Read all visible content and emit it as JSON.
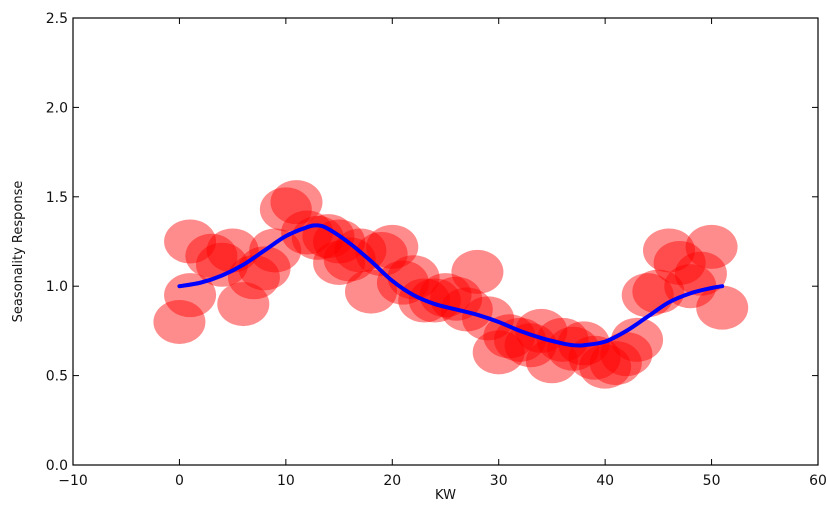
{
  "chart_data": {
    "type": "scatter",
    "title": "",
    "xlabel": "KW",
    "ylabel": "Seasonality Response",
    "xlim": [
      -10,
      60
    ],
    "ylim": [
      0.0,
      2.5
    ],
    "x_ticks": [
      -10,
      0,
      10,
      20,
      30,
      40,
      50,
      60
    ],
    "x_tick_labels": [
      "−10",
      "0",
      "10",
      "20",
      "30",
      "40",
      "50",
      "60"
    ],
    "y_ticks": [
      0.0,
      0.5,
      1.0,
      1.5,
      2.0,
      2.5
    ],
    "y_tick_labels": [
      "0.0",
      "0.5",
      "1.0",
      "1.5",
      "2.0",
      "2.5"
    ],
    "grid": false,
    "legend": "none",
    "series": [
      {
        "type": "scatter",
        "color": "#ff0000",
        "alpha": 0.45,
        "x": [
          0,
          1,
          1,
          3,
          4,
          5,
          6,
          7,
          8,
          9,
          10,
          11,
          12,
          13,
          14,
          15,
          15,
          16,
          17,
          18,
          19,
          20,
          21,
          22,
          23,
          24,
          25,
          26,
          27,
          28,
          29,
          30,
          31,
          32,
          33,
          34,
          35,
          36,
          37,
          38,
          39,
          40,
          41,
          42,
          43,
          44,
          45,
          46,
          47,
          48,
          49,
          50,
          51
        ],
        "y": [
          0.8,
          1.25,
          0.95,
          1.17,
          1.12,
          1.2,
          0.9,
          1.05,
          1.1,
          1.2,
          1.43,
          1.47,
          1.3,
          1.27,
          1.28,
          1.13,
          1.25,
          1.15,
          1.2,
          0.97,
          1.18,
          1.22,
          1.02,
          1.05,
          0.92,
          0.92,
          0.95,
          0.93,
          0.87,
          1.08,
          0.82,
          0.63,
          0.72,
          0.7,
          0.67,
          0.75,
          0.58,
          0.7,
          0.65,
          0.68,
          0.6,
          0.55,
          0.57,
          0.62,
          0.7,
          0.95,
          0.97,
          1.2,
          1.13,
          1.0,
          1.07,
          1.22,
          0.88
        ]
      },
      {
        "type": "line",
        "color": "#0000ff",
        "x": [
          0,
          2,
          4,
          6,
          8,
          10,
          12,
          13,
          14,
          16,
          18,
          20,
          22,
          24,
          26,
          28,
          30,
          32,
          34,
          36,
          37,
          38,
          40,
          42,
          44,
          46,
          48,
          50,
          51
        ],
        "y": [
          1.0,
          1.02,
          1.06,
          1.12,
          1.2,
          1.28,
          1.33,
          1.34,
          1.32,
          1.24,
          1.14,
          1.03,
          0.95,
          0.9,
          0.87,
          0.84,
          0.8,
          0.75,
          0.71,
          0.68,
          0.67,
          0.67,
          0.69,
          0.75,
          0.83,
          0.91,
          0.96,
          0.99,
          1.0
        ]
      }
    ]
  }
}
